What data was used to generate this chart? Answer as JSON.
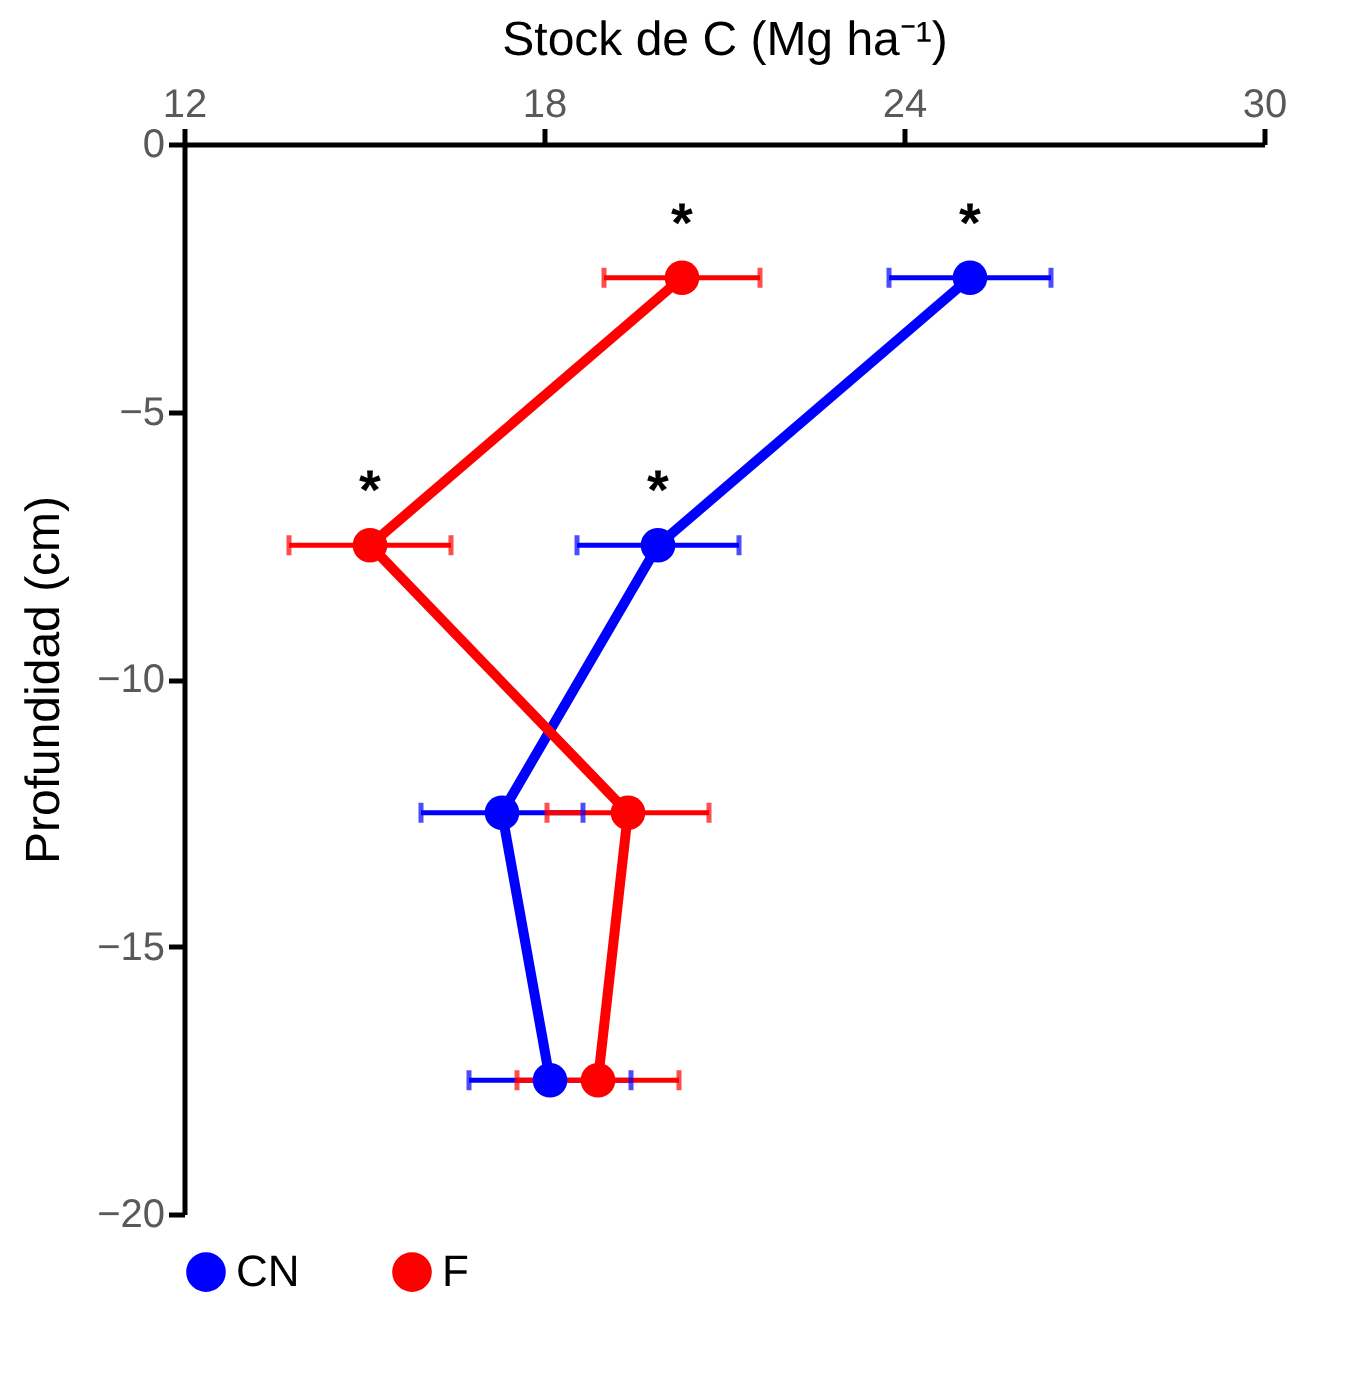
{
  "chart_data": {
    "type": "line",
    "xlabel": "Stock de C (Mg ha⁻¹)",
    "ylabel": "Profundidad (cm)",
    "xlim": [
      12,
      30
    ],
    "xticks": [
      12,
      18,
      24,
      30
    ],
    "ylim": [
      -20,
      0
    ],
    "yticks": [
      0,
      -5,
      -10,
      -15,
      -20
    ],
    "grid": false,
    "legend": "bottom",
    "marker": "circle",
    "line_style": "solid",
    "series": [
      {
        "name": "CN",
        "color": "#0000ff",
        "x": [
          25.1,
          19.9,
          17.3,
          18.1
        ],
        "values": [
          -2.5,
          -7.5,
          -12.5,
          -17.5
        ],
        "xerrors": [
          1.35,
          1.35,
          1.35,
          1.35
        ]
      },
      {
        "name": "F",
        "color": "#ff0000",
        "x": [
          20.3,
          15.1,
          19.4,
          18.9
        ],
        "values": [
          -2.5,
          -7.5,
          -12.5,
          -17.5
        ],
        "xerrors": [
          1.3,
          1.35,
          1.35,
          1.35
        ]
      }
    ],
    "annotations": [
      {
        "text": "*",
        "x": 25.1,
        "y": -2.5
      },
      {
        "text": "*",
        "x": 20.3,
        "y": -2.5
      },
      {
        "text": "*",
        "x": 19.9,
        "y": -7.5
      },
      {
        "text": "*",
        "x": 15.1,
        "y": -7.5
      }
    ]
  }
}
